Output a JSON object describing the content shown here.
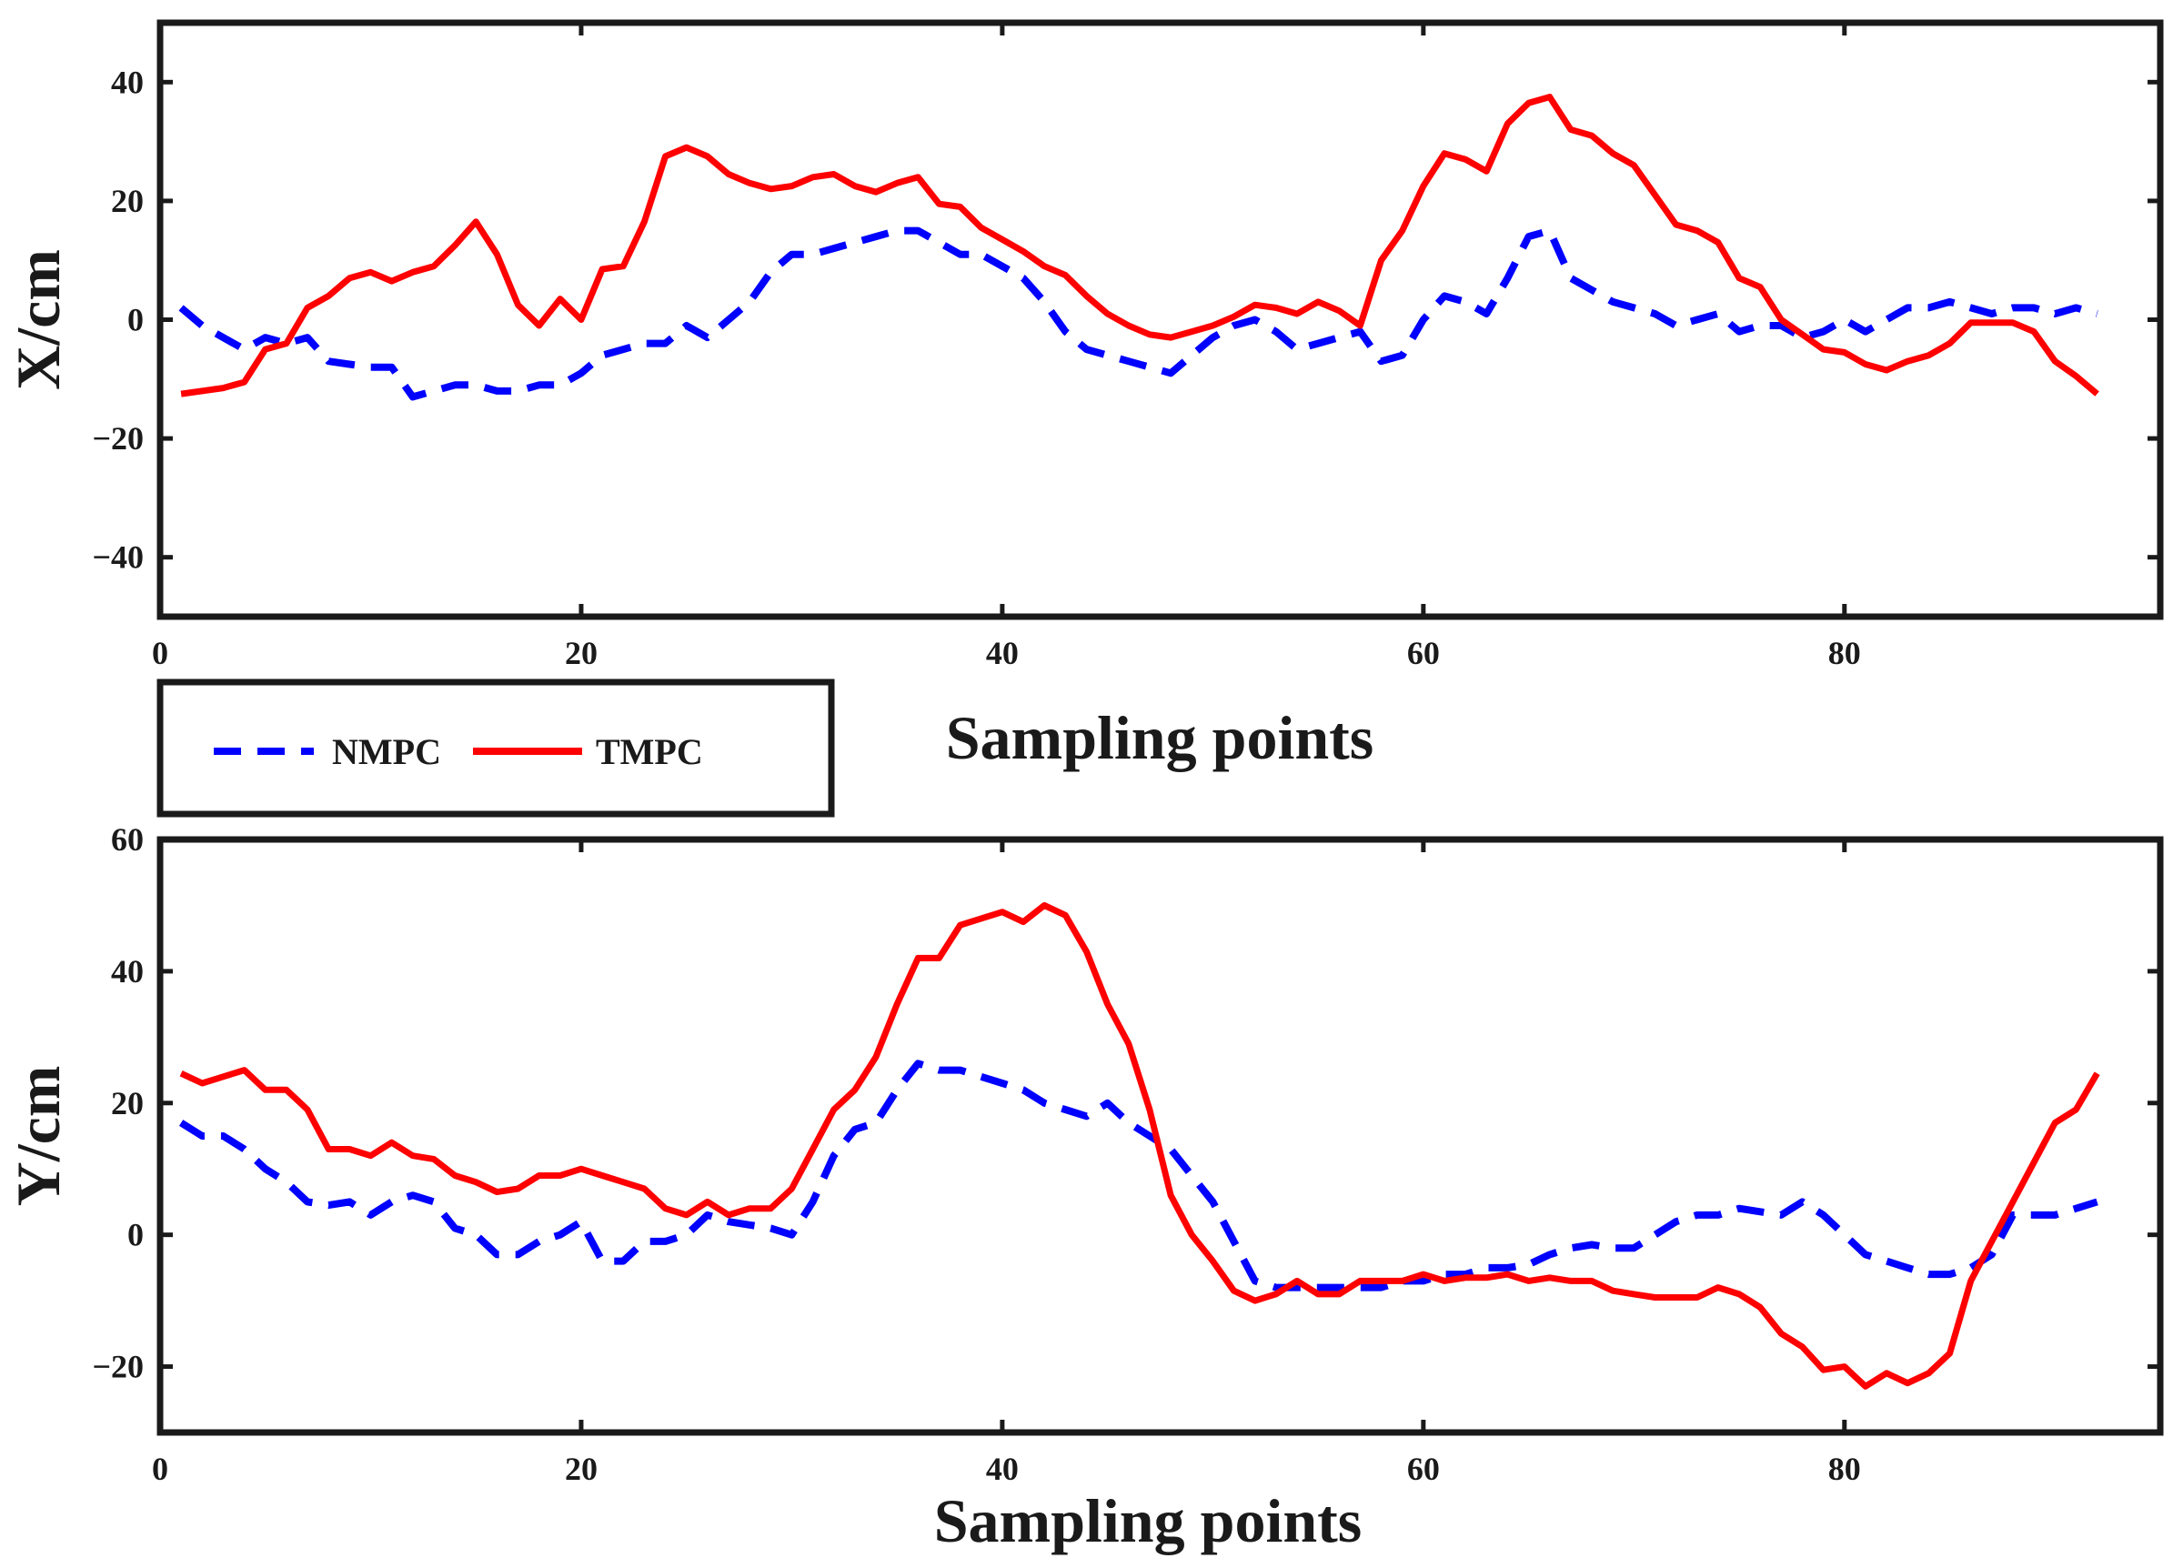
{
  "chart_data": [
    {
      "type": "line",
      "id": "x",
      "xlabel": "Sampling points",
      "ylabel": "X/cm",
      "xlim": [
        0,
        95
      ],
      "ylim": [
        -50,
        50
      ],
      "xticks": [
        0,
        20,
        40,
        60,
        80
      ],
      "yticks": [
        -40,
        -20,
        0,
        20,
        40
      ],
      "x_tick_labels": [
        "0",
        "20",
        "40",
        "60",
        "80"
      ],
      "y_tick_labels": [
        "−40",
        "−20",
        "0",
        "20",
        "40"
      ],
      "series": [
        {
          "name": "NMPC",
          "color": "#0000ff",
          "style": "dashed",
          "x": [
            1,
            2,
            3,
            4,
            5,
            6,
            7,
            8,
            9,
            10,
            11,
            12,
            13,
            14,
            15,
            16,
            17,
            18,
            19,
            20,
            21,
            22,
            23,
            24,
            25,
            26,
            27,
            28,
            29,
            30,
            31,
            32,
            33,
            34,
            35,
            36,
            37,
            38,
            39,
            40,
            41,
            42,
            43,
            44,
            45,
            46,
            47,
            48,
            49,
            50,
            51,
            52,
            53,
            54,
            55,
            56,
            57,
            58,
            59,
            60,
            61,
            62,
            63,
            64,
            65,
            66,
            67,
            68,
            69,
            70,
            71,
            72,
            73,
            74,
            75,
            76,
            77,
            78,
            79,
            80,
            81,
            82,
            83,
            84,
            85,
            86,
            87,
            88,
            89,
            90,
            91,
            92
          ],
          "values": [
            2,
            -1,
            -3,
            -5,
            -3,
            -4,
            -3,
            -7,
            -7.5,
            -8,
            -8,
            -13,
            -12,
            -11,
            -11,
            -12,
            -12,
            -11,
            -11,
            -9,
            -6,
            -5,
            -4,
            -4,
            -1,
            -3,
            0,
            3,
            8,
            11,
            11,
            12,
            13,
            14,
            15,
            15,
            13,
            11,
            11,
            9,
            7,
            3,
            -2,
            -5,
            -6,
            -7,
            -8,
            -9,
            -6,
            -3,
            -1,
            0,
            -2,
            -5,
            -4,
            -3,
            -2,
            -7,
            -6,
            0,
            4,
            3,
            1,
            7,
            14,
            15,
            7,
            5,
            3,
            2,
            1,
            -1,
            0,
            1,
            -2,
            -1,
            -1,
            -3,
            -2,
            0,
            -2,
            0,
            2,
            2,
            3,
            2,
            1,
            2,
            2,
            1,
            2,
            1
          ]
        },
        {
          "name": "TMPC",
          "color": "#ff0000",
          "style": "solid",
          "x": [
            1,
            2,
            3,
            4,
            5,
            6,
            7,
            8,
            9,
            10,
            11,
            12,
            13,
            14,
            15,
            16,
            17,
            18,
            19,
            20,
            21,
            22,
            23,
            24,
            25,
            26,
            27,
            28,
            29,
            30,
            31,
            32,
            33,
            34,
            35,
            36,
            37,
            38,
            39,
            40,
            41,
            42,
            43,
            44,
            45,
            46,
            47,
            48,
            49,
            50,
            51,
            52,
            53,
            54,
            55,
            56,
            57,
            58,
            59,
            60,
            61,
            62,
            63,
            64,
            65,
            66,
            67,
            68,
            69,
            70,
            71,
            72,
            73,
            74,
            75,
            76,
            77,
            78,
            79,
            80,
            81,
            82,
            83,
            84,
            85,
            86,
            87,
            88,
            89,
            90,
            91,
            92
          ],
          "values": [
            -12.5,
            -12,
            -11.5,
            -10.5,
            -5,
            -4,
            2,
            4,
            7,
            8,
            6.5,
            8,
            9,
            12.5,
            16.5,
            11,
            2.5,
            -1,
            3.5,
            0,
            8.5,
            9,
            16.5,
            27.5,
            29,
            27.5,
            24.5,
            23,
            22,
            22.5,
            24,
            24.5,
            22.5,
            21.5,
            23,
            24,
            19.5,
            19,
            15.5,
            13.5,
            11.5,
            9,
            7.5,
            4,
            1,
            -1,
            -2.5,
            -3,
            -2,
            -1,
            0.5,
            2.5,
            2,
            1,
            3,
            1.5,
            -1,
            10,
            15,
            22.5,
            28,
            27,
            25,
            33,
            36.5,
            37.5,
            32,
            31,
            28,
            26,
            21,
            16,
            15,
            13,
            7,
            5.5,
            0,
            -2.5,
            -5,
            -5.5,
            -7.5,
            -8.5,
            -7,
            -6,
            -4,
            -0.5,
            -0.5,
            -0.5,
            -2,
            -7,
            -9.5,
            -12.5
          ]
        }
      ]
    },
    {
      "type": "line",
      "id": "y",
      "xlabel": "Sampling points",
      "ylabel": "Y/cm",
      "xlim": [
        0,
        95
      ],
      "ylim": [
        -30,
        60
      ],
      "xticks": [
        0,
        20,
        40,
        60,
        80
      ],
      "yticks": [
        -20,
        0,
        20,
        40,
        60
      ],
      "x_tick_labels": [
        "0",
        "20",
        "40",
        "60",
        "80"
      ],
      "y_tick_labels": [
        "−20",
        "0",
        "20",
        "40",
        "60"
      ],
      "series": [
        {
          "name": "NMPC",
          "color": "#0000ff",
          "style": "dashed",
          "x": [
            1,
            2,
            3,
            4,
            5,
            6,
            7,
            8,
            9,
            10,
            11,
            12,
            13,
            14,
            15,
            16,
            17,
            18,
            19,
            20,
            21,
            22,
            23,
            24,
            25,
            26,
            27,
            28,
            29,
            30,
            31,
            32,
            33,
            34,
            35,
            36,
            37,
            38,
            39,
            40,
            41,
            42,
            43,
            44,
            45,
            46,
            47,
            48,
            49,
            50,
            51,
            52,
            53,
            54,
            55,
            56,
            57,
            58,
            59,
            60,
            61,
            62,
            63,
            64,
            65,
            66,
            67,
            68,
            69,
            70,
            71,
            72,
            73,
            74,
            75,
            76,
            77,
            78,
            79,
            80,
            81,
            82,
            83,
            84,
            85,
            86,
            87,
            88,
            89,
            90,
            91,
            92
          ],
          "values": [
            17,
            15,
            15,
            13,
            10,
            8,
            5,
            4.5,
            5,
            3,
            5,
            6,
            5,
            1,
            0,
            -3,
            -3,
            -1,
            0,
            2,
            -4,
            -4,
            -1,
            -1,
            0,
            3,
            2,
            1.5,
            1,
            0,
            5,
            12,
            16,
            17,
            22,
            26,
            25,
            25,
            24,
            23,
            22,
            20,
            19,
            18,
            20,
            17,
            15,
            13,
            9,
            5,
            -1,
            -7,
            -8,
            -8,
            -8,
            -8,
            -8,
            -8,
            -7,
            -7,
            -6,
            -6,
            -5,
            -5,
            -4.5,
            -3,
            -2,
            -1.5,
            -2,
            -2,
            0,
            2,
            3,
            3,
            4,
            3.5,
            3,
            5,
            3,
            0,
            -3,
            -4,
            -5,
            -6,
            -6,
            -5,
            -3,
            3,
            3,
            3,
            4,
            5
          ]
        },
        {
          "name": "TMPC",
          "color": "#ff0000",
          "style": "solid",
          "x": [
            1,
            2,
            3,
            4,
            5,
            6,
            7,
            8,
            9,
            10,
            11,
            12,
            13,
            14,
            15,
            16,
            17,
            18,
            19,
            20,
            21,
            22,
            23,
            24,
            25,
            26,
            27,
            28,
            29,
            30,
            31,
            32,
            33,
            34,
            35,
            36,
            37,
            38,
            39,
            40,
            41,
            42,
            43,
            44,
            45,
            46,
            47,
            48,
            49,
            50,
            51,
            52,
            53,
            54,
            55,
            56,
            57,
            58,
            59,
            60,
            61,
            62,
            63,
            64,
            65,
            66,
            67,
            68,
            69,
            70,
            71,
            72,
            73,
            74,
            75,
            76,
            77,
            78,
            79,
            80,
            81,
            82,
            83,
            84,
            85,
            86,
            87,
            88,
            89,
            90,
            91,
            92
          ],
          "values": [
            24.5,
            23,
            24,
            25,
            22,
            22,
            19,
            13,
            13,
            12,
            14,
            12,
            11.5,
            9,
            8,
            6.5,
            7,
            9,
            9,
            10,
            9,
            8,
            7,
            4,
            3,
            5,
            3,
            4,
            4,
            7,
            13,
            19,
            22,
            27,
            35,
            42,
            42,
            47,
            48,
            49,
            47.5,
            50,
            48.5,
            43,
            35,
            29,
            19,
            6,
            0,
            -4,
            -8.5,
            -10,
            -9,
            -7,
            -9,
            -9,
            -7,
            -7,
            -7,
            -6,
            -7,
            -6.5,
            -6.5,
            -6,
            -7,
            -6.5,
            -7,
            -7,
            -8.5,
            -9,
            -9.5,
            -9.5,
            -9.5,
            -8,
            -9,
            -11,
            -15,
            -17,
            -20.5,
            -20,
            -23,
            -21,
            -22.5,
            -21,
            -18,
            -7,
            -1,
            5,
            11,
            17,
            19,
            24.5
          ]
        }
      ]
    }
  ],
  "legend": {
    "entries": [
      {
        "label": "NMPC",
        "color": "#0000ff",
        "style": "dashed"
      },
      {
        "label": "TMPC",
        "color": "#ff0000",
        "style": "solid"
      }
    ]
  }
}
